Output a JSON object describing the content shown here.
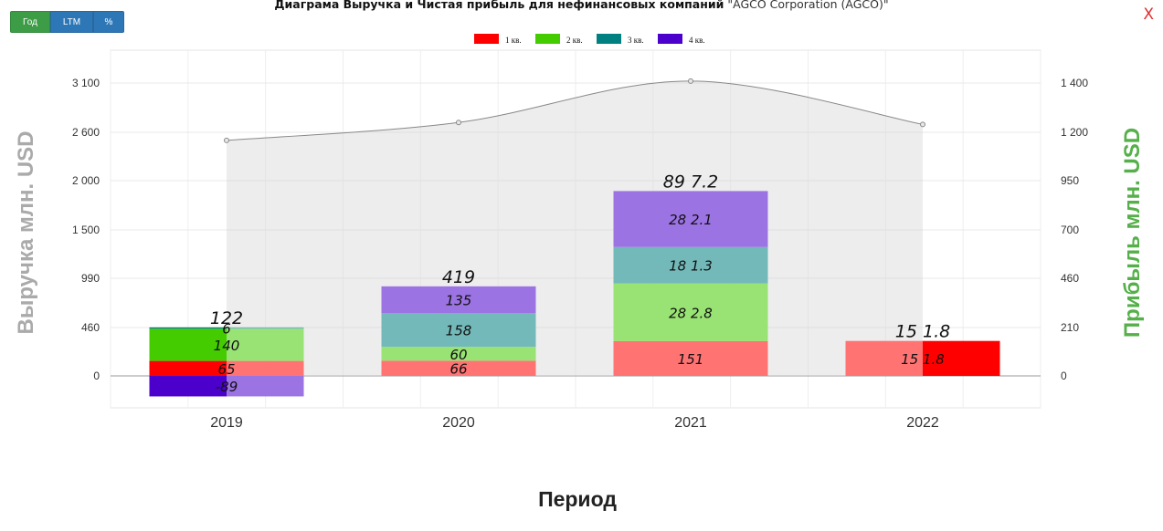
{
  "buttons": {
    "year": "Год",
    "ltm": "LTM",
    "percent": "%"
  },
  "title": {
    "main": "Диаграма Выручка и Чистая прибыль для нефинансовых компаний",
    "company": "\"AGCO Corporation (AGCO)\""
  },
  "close_label": "X",
  "chart_data": {
    "type": "bar",
    "categories": [
      "2019",
      "2020",
      "2021",
      "2022"
    ],
    "xlabel": "Период",
    "ylabel_left": "Выручка млн. USD",
    "ylabel_right": "Прибыль млн. USD",
    "y_ticks_left": [
      "0",
      "460",
      "990",
      "1 500",
      "2 000",
      "2 600",
      "3 100"
    ],
    "y_ticks_right": [
      "0",
      "210",
      "460",
      "700",
      "950",
      "1 200",
      "1 400"
    ],
    "legend": {
      "position": "top-center"
    },
    "series": [
      {
        "name": "1 кв.",
        "color": "#ff0000",
        "values": [
          65,
          66,
          151,
          151.8
        ],
        "labels": [
          "65",
          "66",
          "151",
          "15 1.8"
        ]
      },
      {
        "name": "2 кв.",
        "color": "#44cc00",
        "values": [
          140,
          60,
          282.8,
          null
        ],
        "labels": [
          "140",
          "60",
          "28 2.8",
          ""
        ]
      },
      {
        "name": "3 кв.",
        "color": "#008080",
        "values": [
          6,
          158,
          181.3,
          null
        ],
        "labels": [
          "6",
          "158",
          "18 1.3",
          ""
        ]
      },
      {
        "name": "4 кв.",
        "color": "#4b00cc",
        "values": [
          -89,
          135,
          282.1,
          null
        ],
        "labels": [
          "-89",
          "135",
          "28 2.1",
          ""
        ]
      }
    ],
    "totals": [
      "122",
      "419",
      "89 7.2",
      "15 1.8"
    ],
    "revenue_line": {
      "values": [
        2500,
        2700,
        3120,
        2680
      ],
      "color": "#888888"
    }
  }
}
